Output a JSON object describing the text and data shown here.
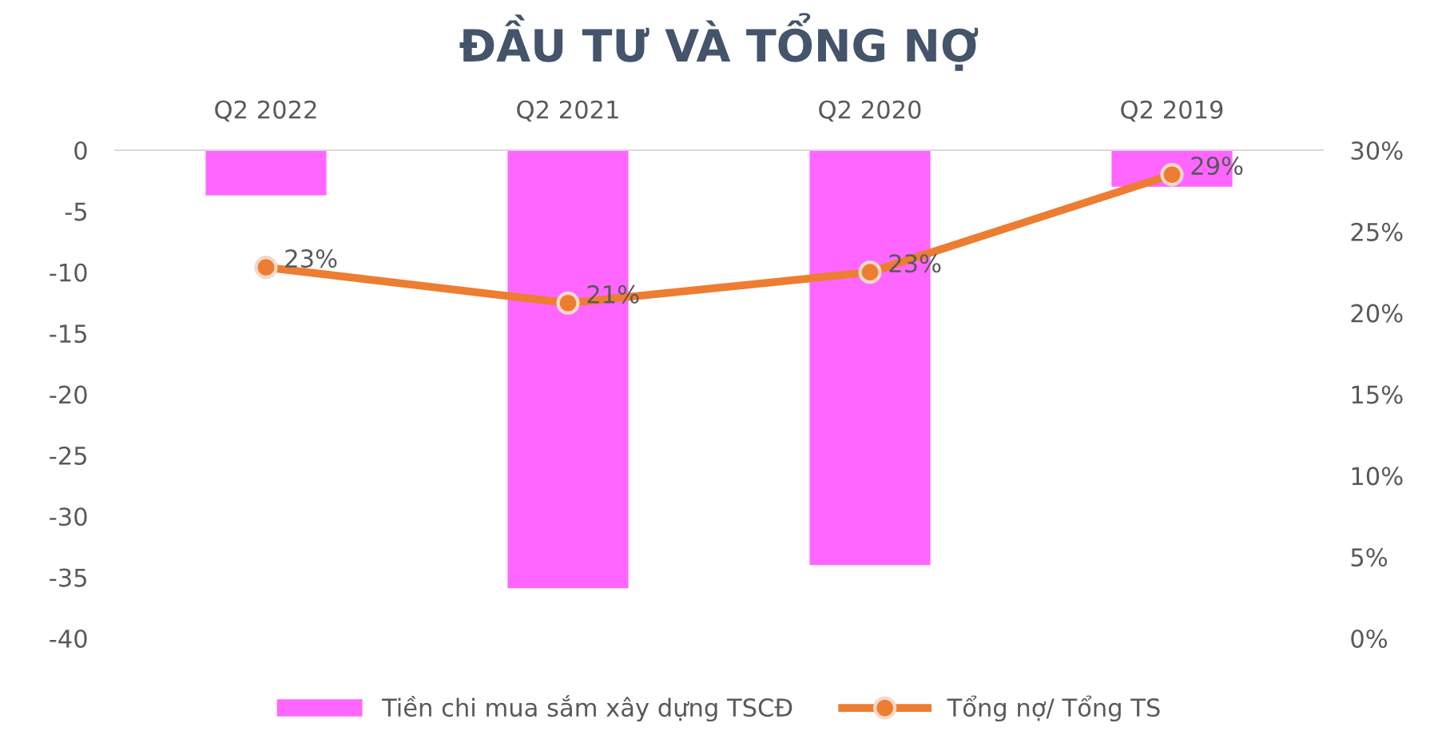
{
  "chart_data": {
    "type": "bar",
    "title": "ĐẦU TƯ VÀ TỔNG NỢ",
    "categories": [
      "Q2 2022",
      "Q2 2021",
      "Q2 2020",
      "Q2 2019"
    ],
    "series": [
      {
        "name": "Tiền chi mua sắm xây dựng TSCĐ",
        "color": "#ff66ff",
        "values": [
          -3.7,
          -35.9,
          -34.0,
          -3.0
        ]
      },
      {
        "name": "Tổng nợ/ Tổng TS",
        "type": "line",
        "axis": "y2",
        "color": "#ed7d31",
        "marker": "circle",
        "values": [
          22.8,
          20.6,
          22.5,
          28.5
        ],
        "value_labels": [
          "23%",
          "21%",
          "23%",
          "29%"
        ]
      }
    ],
    "ylim": [
      -40,
      0
    ],
    "yticks": [
      -40,
      -35,
      -30,
      -25,
      -20,
      -15,
      -10,
      -5,
      0
    ],
    "y2lim": [
      0,
      30
    ],
    "y2ticks": [
      {
        "value": 0,
        "label": "0%"
      },
      {
        "value": 5,
        "label": "5%"
      },
      {
        "value": 10,
        "label": "10%"
      },
      {
        "value": 15,
        "label": "15%"
      },
      {
        "value": 20,
        "label": "20%"
      },
      {
        "value": 25,
        "label": "25%"
      },
      {
        "value": 30,
        "label": "30%"
      }
    ],
    "grid": false,
    "legend": "bottom"
  }
}
